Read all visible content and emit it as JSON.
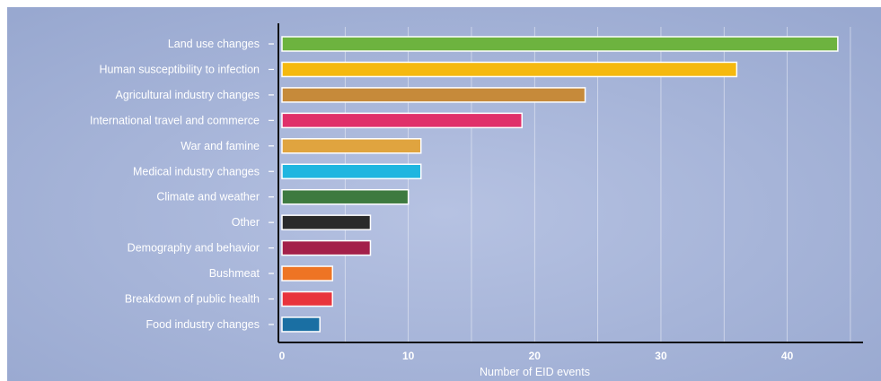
{
  "chart_data": {
    "type": "bar",
    "orientation": "horizontal",
    "categories": [
      "Land use changes",
      "Human susceptibility to infection",
      "Agricultural industry changes",
      "International travel and commerce",
      "War and famine",
      "Medical industry changes",
      "Climate and weather",
      "Other",
      "Demography and behavior",
      "Bushmeat",
      "Breakdown of public health",
      "Food industry changes"
    ],
    "values": [
      44,
      36,
      24,
      19,
      11,
      11,
      10,
      7,
      7,
      4,
      4,
      3
    ],
    "colors": [
      "#6db33f",
      "#f5b90f",
      "#c68a3a",
      "#e0306a",
      "#e0a43f",
      "#1fb6e0",
      "#3d7a3f",
      "#2a2a2a",
      "#a3204a",
      "#ee7424",
      "#e8343c",
      "#1a6fa3"
    ],
    "xlabel": "Number of EID events",
    "xlim": [
      0,
      46
    ],
    "xticks": [
      0,
      10,
      20,
      30,
      40
    ],
    "grid": "vertical",
    "background": "#a7b5d8"
  }
}
